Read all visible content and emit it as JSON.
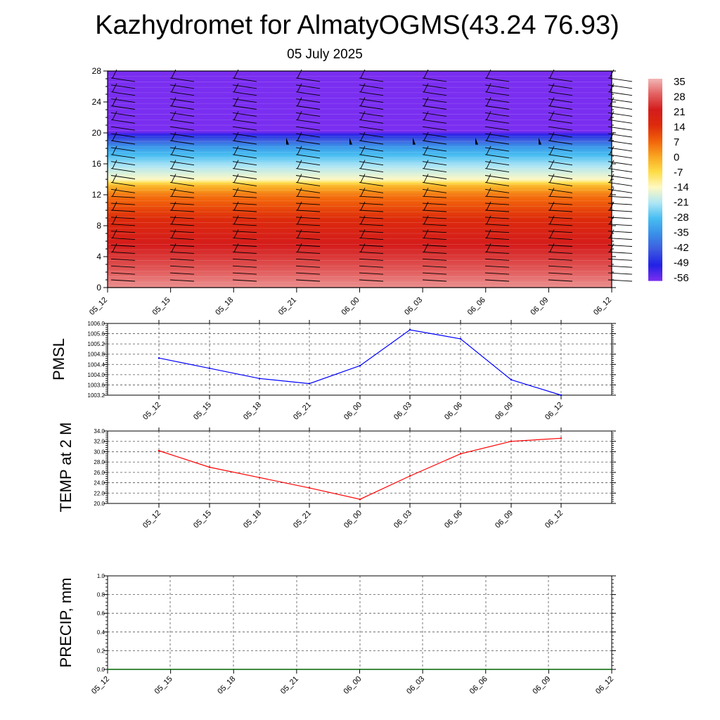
{
  "page": {
    "title": "Kazhydromet for AlmatyOGMS(43.24 76.93)",
    "subtitle": "05 July 2025"
  },
  "colorbar": {
    "labels": [
      "35",
      "28",
      "21",
      "14",
      "7",
      "0",
      "-7",
      "-14",
      "-21",
      "-28",
      "-35",
      "-42",
      "-49",
      "-56"
    ],
    "colors": [
      "#f2b6b6",
      "#e36060",
      "#d41c1c",
      "#dd2a0c",
      "#f2620a",
      "#f9a521",
      "#fedc45",
      "#fff9c2",
      "#aee6f5",
      "#47bdf2",
      "#3a8fe8",
      "#3d5be0",
      "#2121e6",
      "#7a2ef0"
    ]
  },
  "chart_data": [
    {
      "type": "heatmap",
      "title": "",
      "categories": [
        "05_12",
        "05_15",
        "05_18",
        "05_21",
        "06_00",
        "06_03",
        "06_06",
        "06_09",
        "06_12"
      ],
      "ylim": [
        0,
        28
      ],
      "yticks": [
        "0",
        "4",
        "8",
        "12",
        "16",
        "20",
        "24",
        "28"
      ],
      "value_range": [
        -56,
        35
      ],
      "profile": {
        "y": [
          0,
          2,
          4,
          6,
          8,
          10,
          12,
          13.3,
          14,
          16,
          18,
          19.5,
          20.5,
          22,
          24,
          28
        ],
        "value": [
          32,
          28,
          24,
          20,
          16,
          11,
          5,
          -3,
          -14,
          -22,
          -32,
          -45,
          -60,
          -56,
          -56,
          -56
        ]
      },
      "wind_barbs": true
    },
    {
      "type": "line",
      "ylabel": "PMSL",
      "categories": [
        "05_12",
        "05_15",
        "05_18",
        "05_21",
        "06_00",
        "06_03",
        "06_06",
        "06_09",
        "06_12"
      ],
      "values": [
        1004.65,
        1004.25,
        1003.85,
        1003.65,
        1004.35,
        1005.75,
        1005.4,
        1003.8,
        1003.2
      ],
      "ylim": [
        1003.2,
        1006.0
      ],
      "yticks": [
        "1003.2",
        "1003.6",
        "1004.0",
        "1004.4",
        "1004.8",
        "1005.2",
        "1005.6",
        "1006.0"
      ],
      "color": "#0000ff",
      "grid": true
    },
    {
      "type": "line",
      "ylabel": "TEMP at 2 M",
      "categories": [
        "05_12",
        "05_15",
        "05_18",
        "05_21",
        "06_00",
        "06_03",
        "06_06",
        "06_09",
        "06_12"
      ],
      "values": [
        30.2,
        27.0,
        25.0,
        23.0,
        20.8,
        25.3,
        29.6,
        32.0,
        32.6
      ],
      "ylim": [
        20.0,
        34.0
      ],
      "yticks": [
        "20.0",
        "22.0",
        "24.0",
        "26.0",
        "28.0",
        "30.0",
        "32.0",
        "34.0"
      ],
      "color": "#ff0000",
      "grid": true
    },
    {
      "type": "line",
      "ylabel": "PRECIP, mm",
      "categories": [
        "05_12",
        "05_15",
        "05_18",
        "05_21",
        "06_00",
        "06_03",
        "06_06",
        "06_09",
        "06_12"
      ],
      "values": [
        0,
        0,
        0,
        0,
        0,
        0,
        0,
        0,
        0
      ],
      "ylim": [
        0.0,
        1.0
      ],
      "yticks": [
        "0.0",
        "0.2",
        "0.4",
        "0.6",
        "0.8",
        "1.0"
      ],
      "color": "#006400",
      "grid": true
    }
  ]
}
